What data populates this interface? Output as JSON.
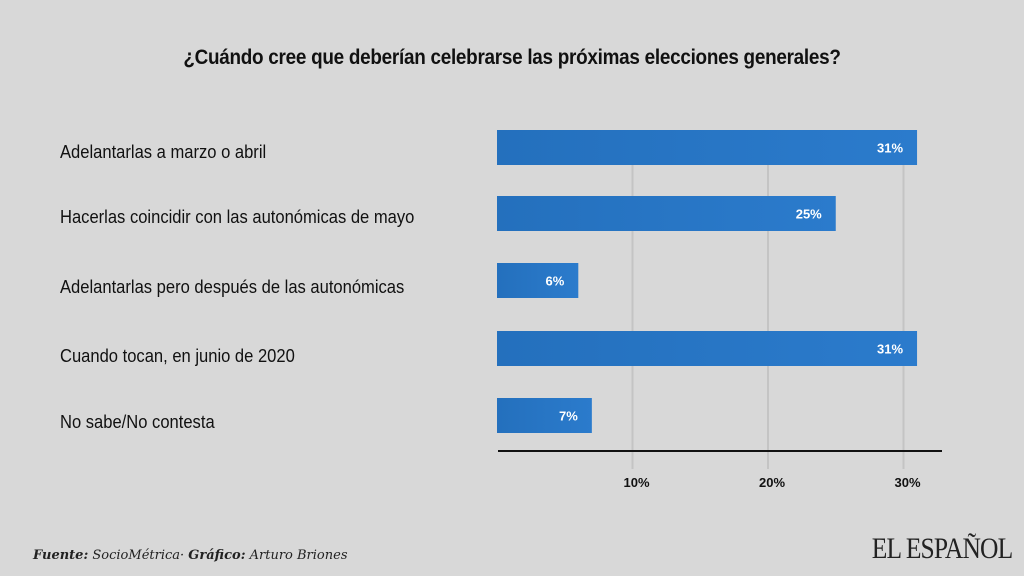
{
  "chart_data": {
    "type": "bar",
    "orientation": "horizontal",
    "title": "¿Cuándo cree que deberían celebrarse las próximas elecciones generales?",
    "categories": [
      "Adelantarlas a marzo o abril",
      "Hacerlas coincidir con las autonómicas de mayo",
      "Adelantarlas pero después de las autonómicas",
      "Cuando tocan, en junio de 2020",
      "No sabe/No contesta"
    ],
    "values": [
      31,
      25,
      6,
      31,
      7
    ],
    "value_labels": [
      "31%",
      "25%",
      "6%",
      "31%",
      "7%"
    ],
    "xlabel": "",
    "ylabel": "",
    "xlim": [
      0,
      32.5
    ],
    "xticks": [
      10,
      20,
      30
    ],
    "xtick_labels": [
      "10%",
      "20%",
      "30%"
    ],
    "grid": true,
    "legend": "none",
    "bar_color": "#2a78c8"
  },
  "footer": {
    "source_label": "Fuente:",
    "source_value": " SocioMétrica· ",
    "graphic_label": "Gráfico:",
    "graphic_value": " Arturo Briones"
  },
  "brand": "EL ESPAÑOL"
}
